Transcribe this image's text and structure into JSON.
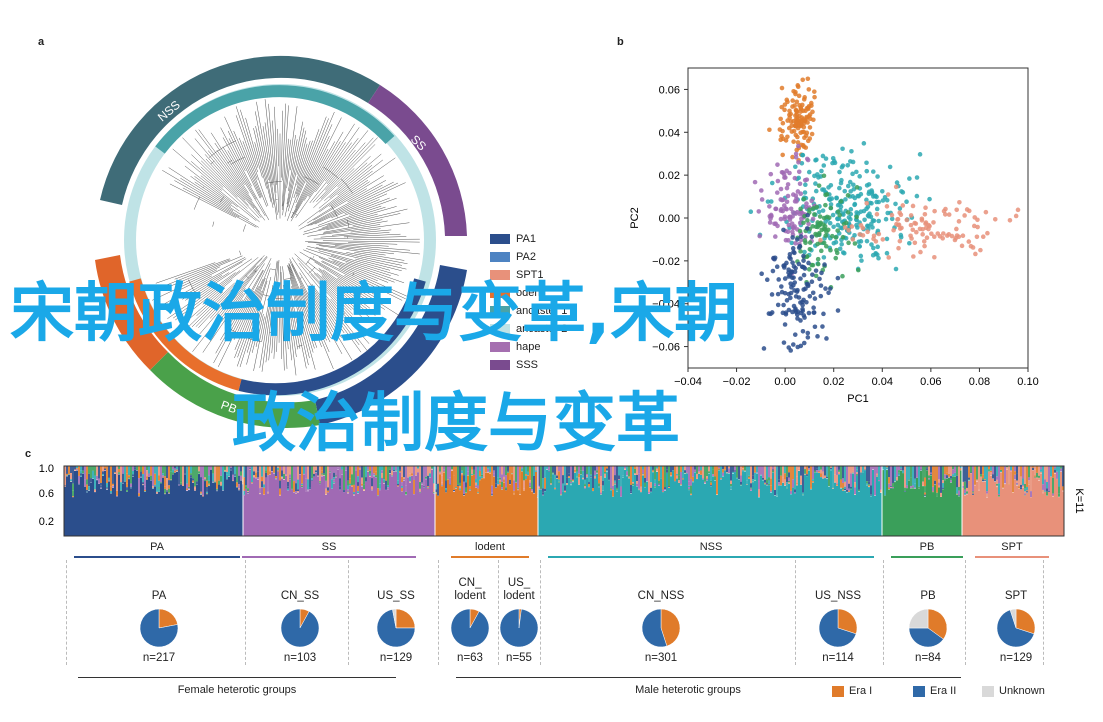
{
  "panels": {
    "a": "a",
    "b": "b",
    "c": "c"
  },
  "tree": {
    "ring_labels": [
      "NSS",
      "SS",
      "PB"
    ],
    "legend": [
      {
        "label": "PA1",
        "color": "#2b4e8c"
      },
      {
        "label": "PA2",
        "color": "#4d83c2"
      },
      {
        "label": "SPT1",
        "color": "#e8917a"
      },
      {
        "label": "odent",
        "color": "#e86f2c"
      },
      {
        "label": "ancaster 1",
        "color": "#4aa3a8"
      },
      {
        "label": "ancaster 2",
        "color": "#bfe3e6"
      },
      {
        "label": "hape",
        "color": "#a56fb0"
      },
      {
        "label": "SSS",
        "color": "#7a4b8f"
      }
    ]
  },
  "chart_data": [
    {
      "type": "scatter",
      "xlabel": "PC1",
      "ylabel": "PC2",
      "xlim": [
        -0.04,
        0.1
      ],
      "ylim": [
        -0.07,
        0.07
      ],
      "x_ticks": [
        "−0.04",
        "−0.02",
        "0.00",
        "0.02",
        "0.04",
        "0.06",
        "0.08",
        "0.10"
      ],
      "y_ticks": [
        "0.06",
        "0.04",
        "0.02",
        "0.00",
        "−0.02",
        "−0.04",
        "−0.06"
      ],
      "clusters": [
        {
          "color": "#e07b2a",
          "cx": 0.005,
          "cy": 0.045,
          "sx": 0.004,
          "sy": 0.008,
          "n": 120
        },
        {
          "color": "#2ba8b2",
          "cx": 0.025,
          "cy": 0.005,
          "sx": 0.012,
          "sy": 0.012,
          "n": 260
        },
        {
          "color": "#a06ab4",
          "cx": 0.002,
          "cy": 0.005,
          "sx": 0.005,
          "sy": 0.012,
          "n": 110
        },
        {
          "color": "#3a9f5a",
          "cx": 0.015,
          "cy": -0.005,
          "sx": 0.006,
          "sy": 0.01,
          "n": 90
        },
        {
          "color": "#2b4e8c",
          "cx": 0.005,
          "cy": -0.035,
          "sx": 0.006,
          "sy": 0.014,
          "n": 140
        },
        {
          "color": "#e8917a",
          "cx": 0.06,
          "cy": -0.005,
          "sx": 0.015,
          "sy": 0.006,
          "n": 110
        }
      ]
    },
    {
      "type": "bar",
      "title": "",
      "yticks": [
        "1.0",
        "0.6",
        "0.2"
      ],
      "k_label": "K=11",
      "segments": [
        {
          "label": "PA",
          "color": "#2b4e8c"
        },
        {
          "label": "SS",
          "color": "#a06ab4"
        },
        {
          "label": "lodent",
          "color": "#e07b2a"
        },
        {
          "label": "NSS",
          "color": "#2ba8b2"
        },
        {
          "label": "PB",
          "color": "#3a9f5a"
        },
        {
          "label": "SPT",
          "color": "#e8917a"
        }
      ]
    },
    {
      "type": "pie",
      "legend": [
        {
          "label": "Era I",
          "color": "#e07b2a"
        },
        {
          "label": "Era II",
          "color": "#2f69a8"
        },
        {
          "label": "Unknown",
          "color": "#d9d9d9"
        }
      ],
      "pies": [
        {
          "label": "PA",
          "n": "n=217",
          "values": [
            0.22,
            0.78,
            0.0
          ]
        },
        {
          "label": "CN_SS",
          "n": "n=103",
          "values": [
            0.08,
            0.92,
            0.0
          ]
        },
        {
          "label": "US_SS",
          "n": "n=129",
          "values": [
            0.25,
            0.72,
            0.03
          ]
        },
        {
          "label": "CN_ lodent",
          "n": "n=63",
          "values": [
            0.08,
            0.92,
            0.0
          ]
        },
        {
          "label": "US_ lodent",
          "n": "n=55",
          "values": [
            0.02,
            0.98,
            0.0
          ]
        },
        {
          "label": "CN_NSS",
          "n": "n=301",
          "values": [
            0.45,
            0.55,
            0.0
          ]
        },
        {
          "label": "US_NSS",
          "n": "n=114",
          "values": [
            0.3,
            0.7,
            0.0
          ]
        },
        {
          "label": "PB",
          "n": "n=84",
          "values": [
            0.35,
            0.4,
            0.25
          ]
        },
        {
          "label": "SPT",
          "n": "n=129",
          "values": [
            0.3,
            0.65,
            0.05
          ]
        }
      ]
    }
  ],
  "groups": {
    "female": "Female heterotic groups",
    "male": "Male heterotic groups"
  },
  "overlay": {
    "line1": "宋朝政治制度与变革,宋朝",
    "line2": "政治制度与变革"
  }
}
